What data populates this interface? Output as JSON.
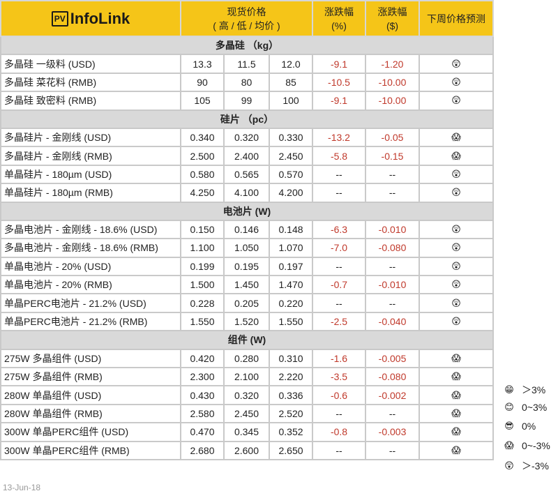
{
  "header": {
    "logo_pv": "PV",
    "logo_text": "InfoLink",
    "spot_price": "现货价格",
    "spot_sub": "( 高 / 低 / 均价 )",
    "chg_pct": "涨跌幅",
    "chg_pct_unit": "(%)",
    "chg_usd": "涨跌幅",
    "chg_usd_unit": "($)",
    "forecast": "下周价格预测"
  },
  "sections": [
    {
      "title": "多晶硅 （kg）",
      "rows": [
        [
          "多晶硅 一级料 (USD)",
          "13.3",
          "11.5",
          "12.0",
          "-9.1",
          "-1.20",
          "😲"
        ],
        [
          "多晶硅 菜花料 (RMB)",
          "90",
          "80",
          "85",
          "-10.5",
          "-10.00",
          "😲"
        ],
        [
          "多晶硅 致密料 (RMB)",
          "105",
          "99",
          "100",
          "-9.1",
          "-10.00",
          "😲"
        ]
      ]
    },
    {
      "title": "硅片 （pc）",
      "rows": [
        [
          "多晶硅片 - 金刚线 (USD)",
          "0.340",
          "0.320",
          "0.330",
          "-13.2",
          "-0.05",
          "😱"
        ],
        [
          "多晶硅片 - 金刚线 (RMB)",
          "2.500",
          "2.400",
          "2.450",
          "-5.8",
          "-0.15",
          "😱"
        ],
        [
          "单晶硅片 - 180µm (USD)",
          "0.580",
          "0.565",
          "0.570",
          "--",
          "--",
          "😲"
        ],
        [
          "单晶硅片 - 180µm (RMB)",
          "4.250",
          "4.100",
          "4.200",
          "--",
          "--",
          "😲"
        ]
      ]
    },
    {
      "title": "电池片 (W)",
      "rows": [
        [
          "多晶电池片 - 金刚线 - 18.6% (USD)",
          "0.150",
          "0.146",
          "0.148",
          "-6.3",
          "-0.010",
          "😲"
        ],
        [
          "多晶电池片 - 金刚线 - 18.6% (RMB)",
          "1.100",
          "1.050",
          "1.070",
          "-7.0",
          "-0.080",
          "😲"
        ],
        [
          "单晶电池片 - 20% (USD)",
          "0.199",
          "0.195",
          "0.197",
          "--",
          "--",
          "😲"
        ],
        [
          "单晶电池片 - 20% (RMB)",
          "1.500",
          "1.450",
          "1.470",
          "-0.7",
          "-0.010",
          "😲"
        ],
        [
          "单晶PERC电池片 - 21.2% (USD)",
          "0.228",
          "0.205",
          "0.220",
          "--",
          "--",
          "😲"
        ],
        [
          "单晶PERC电池片 - 21.2% (RMB)",
          "1.550",
          "1.520",
          "1.550",
          "-2.5",
          "-0.040",
          "😲"
        ]
      ]
    },
    {
      "title": "组件 (W)",
      "rows": [
        [
          "275W 多晶组件 (USD)",
          "0.420",
          "0.280",
          "0.310",
          "-1.6",
          "-0.005",
          "😱"
        ],
        [
          "275W 多晶组件 (RMB)",
          "2.300",
          "2.100",
          "2.220",
          "-3.5",
          "-0.080",
          "😱"
        ],
        [
          "280W 单晶组件 (USD)",
          "0.430",
          "0.320",
          "0.336",
          "-0.6",
          "-0.002",
          "😱"
        ],
        [
          "280W 单晶组件 (RMB)",
          "2.580",
          "2.450",
          "2.520",
          "--",
          "--",
          "😱"
        ],
        [
          "300W 单晶PERC组件 (USD)",
          "0.470",
          "0.345",
          "0.352",
          "-0.8",
          "-0.003",
          "😱"
        ],
        [
          "300W 单晶PERC组件 (RMB)",
          "2.680",
          "2.600",
          "2.650",
          "--",
          "--",
          "😱"
        ]
      ]
    }
  ],
  "legend": [
    {
      "icon": "😁",
      "label": "＞3%"
    },
    {
      "icon": "😊",
      "label": "0~3%"
    },
    {
      "icon": "😎",
      "label": "0%"
    },
    {
      "icon": "😱",
      "label": "0~-3%"
    },
    {
      "icon": "😲",
      "label": "＞-3%"
    }
  ],
  "colors": {
    "header": "#f5c518",
    "section": "#d9d9d9",
    "negative": "#c0392b"
  },
  "date": "13-Jun-18"
}
